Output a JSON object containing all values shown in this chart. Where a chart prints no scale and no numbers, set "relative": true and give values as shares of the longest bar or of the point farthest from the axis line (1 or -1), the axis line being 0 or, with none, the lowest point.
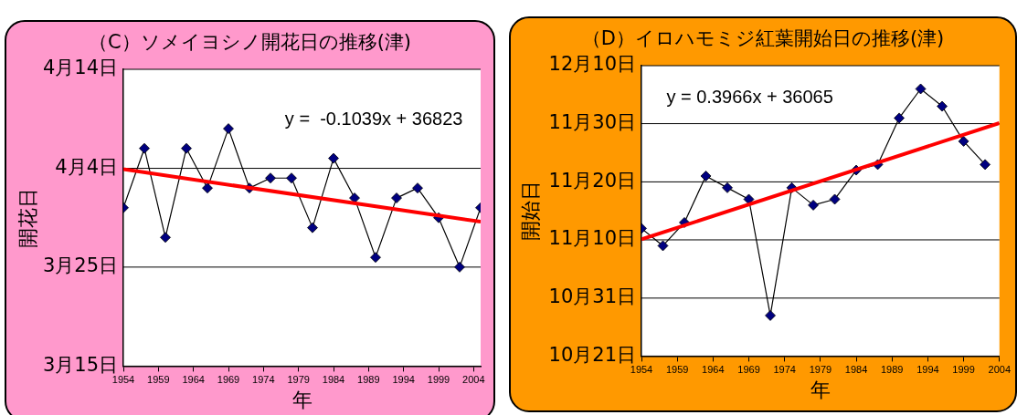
{
  "chart_data": [
    {
      "type": "line",
      "title": "（C）ソメイヨシノ開花日の推移(津)",
      "xlabel": "年",
      "ylabel": "開花日",
      "relative": true,
      "x": [
        1954,
        1957,
        1960,
        1963,
        1966,
        1969,
        1972,
        1975,
        1978,
        1981,
        1984,
        1987,
        1990,
        1993,
        1996,
        1999,
        2002,
        2005
      ],
      "series": [
        {
          "color": "#000080",
          "marker": "diamond",
          "values": [
            0.667,
            0.917,
            0.542,
            0.917,
            0.75,
            1,
            0.75,
            0.792,
            0.792,
            0.583,
            0.875,
            0.708,
            0.458,
            0.708,
            0.75,
            0.625,
            0.417,
            0.667
          ]
        },
        {
          "type": "line",
          "color": "#ff0000",
          "marker": "none",
          "x": [
            1954,
            2005
          ],
          "values": [
            0.829,
            0.608
          ]
        }
      ],
      "xlim": [
        1954,
        2005
      ],
      "xticks": [
        1954,
        1959,
        1964,
        1969,
        1974,
        1979,
        1984,
        1989,
        1994,
        1999,
        2004
      ],
      "ref_lines": [
        {
          "axis": "y",
          "value": 0,
          "label": "3月15日",
          "color": "#000000"
        },
        {
          "axis": "y",
          "value": 0.417,
          "label": "3月25日",
          "color": "#000000"
        },
        {
          "axis": "y",
          "value": 0.833,
          "label": "4月4日",
          "color": "#000000"
        },
        {
          "axis": "y",
          "value": 1.25,
          "label": "4月14日",
          "color": "#000000"
        }
      ],
      "annotations": [
        "y =  -0.1039x + 36823"
      ],
      "legend": false
    },
    {
      "type": "line",
      "title": "（D）イロハモミジ紅葉開始日の推移(津)",
      "xlabel": "年",
      "ylabel": "開始日",
      "relative": true,
      "x": [
        1954,
        1957,
        1960,
        1963,
        1966,
        1969,
        1972,
        1975,
        1978,
        1981,
        1984,
        1987,
        1990,
        1993,
        1996,
        1999,
        2002
      ],
      "series": [
        {
          "color": "#000080",
          "marker": "diamond",
          "values": [
            0.478,
            0.413,
            0.5,
            0.674,
            0.63,
            0.587,
            0.152,
            0.63,
            0.565,
            0.587,
            0.696,
            0.717,
            0.891,
            1,
            0.935,
            0.804,
            0.717
          ]
        },
        {
          "type": "line",
          "color": "#ff0000",
          "marker": "none",
          "x": [
            1954,
            2004
          ],
          "values": [
            0.437,
            0.872
          ]
        }
      ],
      "xlim": [
        1954,
        2004
      ],
      "xticks": [
        1954,
        1959,
        1964,
        1969,
        1974,
        1979,
        1984,
        1989,
        1994,
        1999,
        2004
      ],
      "ref_lines": [
        {
          "axis": "y",
          "value": 0,
          "label": "10月21日",
          "color": "#000000"
        },
        {
          "axis": "y",
          "value": 0.217,
          "label": "10月31日",
          "color": "#000000"
        },
        {
          "axis": "y",
          "value": 0.435,
          "label": "11月10日",
          "color": "#000000"
        },
        {
          "axis": "y",
          "value": 0.652,
          "label": "11月20日",
          "color": "#000000"
        },
        {
          "axis": "y",
          "value": 0.87,
          "label": "11月30日",
          "color": "#000000"
        },
        {
          "axis": "y",
          "value": 1.087,
          "label": "12月10日",
          "color": "#000000"
        }
      ],
      "annotations": [
        "y = 0.3966x + 36065"
      ],
      "legend": false
    }
  ]
}
